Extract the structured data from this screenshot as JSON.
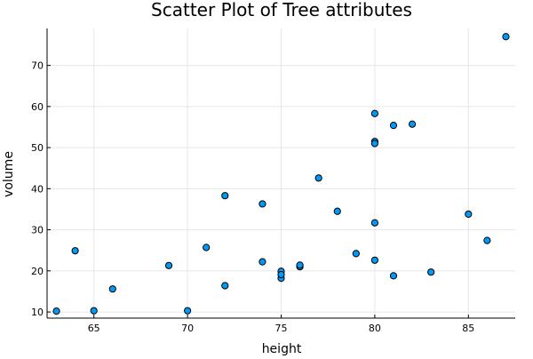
{
  "chart_data": {
    "type": "scatter",
    "title": "Scatter Plot of Tree attributes",
    "xlabel": "height",
    "ylabel": "volume",
    "xlim": [
      62.5,
      87.5
    ],
    "ylim": [
      8.5,
      79
    ],
    "x_ticks": [
      65,
      70,
      75,
      80,
      85
    ],
    "y_ticks": [
      10,
      20,
      30,
      40,
      50,
      60,
      70
    ],
    "grid": true,
    "legend": "none",
    "marker_color": "#009af9",
    "marker_edge_color": "#000000",
    "points": [
      {
        "x": 70,
        "y": 10.3
      },
      {
        "x": 65,
        "y": 10.3
      },
      {
        "x": 63,
        "y": 10.2
      },
      {
        "x": 72,
        "y": 16.4
      },
      {
        "x": 81,
        "y": 18.8
      },
      {
        "x": 83,
        "y": 19.7
      },
      {
        "x": 66,
        "y": 15.6
      },
      {
        "x": 75,
        "y": 18.2
      },
      {
        "x": 80,
        "y": 22.6
      },
      {
        "x": 75,
        "y": 19.9
      },
      {
        "x": 79,
        "y": 24.2
      },
      {
        "x": 76,
        "y": 21.0
      },
      {
        "x": 76,
        "y": 21.4
      },
      {
        "x": 69,
        "y": 21.3
      },
      {
        "x": 75,
        "y": 19.1
      },
      {
        "x": 74,
        "y": 22.2
      },
      {
        "x": 85,
        "y": 33.8
      },
      {
        "x": 86,
        "y": 27.4
      },
      {
        "x": 71,
        "y": 25.7
      },
      {
        "x": 64,
        "y": 24.9
      },
      {
        "x": 78,
        "y": 34.5
      },
      {
        "x": 80,
        "y": 31.7
      },
      {
        "x": 74,
        "y": 36.3
      },
      {
        "x": 72,
        "y": 38.3
      },
      {
        "x": 77,
        "y": 42.6
      },
      {
        "x": 81,
        "y": 55.4
      },
      {
        "x": 82,
        "y": 55.7
      },
      {
        "x": 80,
        "y": 58.3
      },
      {
        "x": 80,
        "y": 51.5
      },
      {
        "x": 80,
        "y": 51.0
      },
      {
        "x": 87,
        "y": 77.0
      }
    ]
  }
}
